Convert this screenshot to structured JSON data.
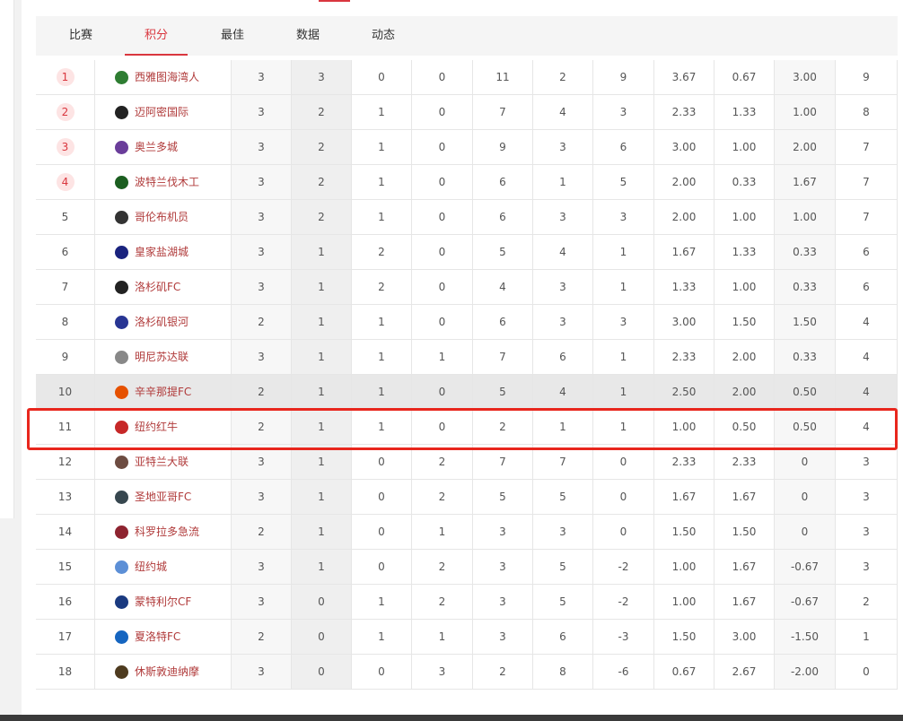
{
  "tabs": [
    "比赛",
    "积分",
    "最佳",
    "数据",
    "动态"
  ],
  "table": {
    "rows": [
      [
        "1",
        "西雅图海湾人",
        "3",
        "3",
        "0",
        "0",
        "11",
        "2",
        "9",
        "3.67",
        "0.67",
        "3.00",
        "9"
      ],
      [
        "2",
        "迈阿密国际",
        "3",
        "2",
        "1",
        "0",
        "7",
        "4",
        "3",
        "2.33",
        "1.33",
        "1.00",
        "8"
      ],
      [
        "3",
        "奥兰多城",
        "3",
        "2",
        "1",
        "0",
        "9",
        "3",
        "6",
        "3.00",
        "1.00",
        "2.00",
        "7"
      ],
      [
        "4",
        "波特兰伐木工",
        "3",
        "2",
        "1",
        "0",
        "6",
        "1",
        "5",
        "2.00",
        "0.33",
        "1.67",
        "7"
      ],
      [
        "5",
        "哥伦布机员",
        "3",
        "2",
        "1",
        "0",
        "6",
        "3",
        "3",
        "2.00",
        "1.00",
        "1.00",
        "7"
      ],
      [
        "6",
        "皇家盐湖城",
        "3",
        "1",
        "2",
        "0",
        "5",
        "4",
        "1",
        "1.67",
        "1.33",
        "0.33",
        "6"
      ],
      [
        "7",
        "洛杉矶FC",
        "3",
        "1",
        "2",
        "0",
        "4",
        "3",
        "1",
        "1.33",
        "1.00",
        "0.33",
        "6"
      ],
      [
        "8",
        "洛杉矶银河",
        "2",
        "1",
        "1",
        "0",
        "6",
        "3",
        "3",
        "3.00",
        "1.50",
        "1.50",
        "4"
      ],
      [
        "9",
        "明尼苏达联",
        "3",
        "1",
        "1",
        "1",
        "7",
        "6",
        "1",
        "2.33",
        "2.00",
        "0.33",
        "4"
      ],
      [
        "10",
        "辛辛那提FC",
        "2",
        "1",
        "1",
        "0",
        "5",
        "4",
        "1",
        "2.50",
        "2.00",
        "0.50",
        "4"
      ],
      [
        "11",
        "纽约红牛",
        "2",
        "1",
        "1",
        "0",
        "2",
        "1",
        "1",
        "1.00",
        "0.50",
        "0.50",
        "4"
      ],
      [
        "12",
        "亚特兰大联",
        "3",
        "1",
        "0",
        "2",
        "7",
        "7",
        "0",
        "2.33",
        "2.33",
        "0",
        "3"
      ],
      [
        "13",
        "圣地亚哥FC",
        "3",
        "1",
        "0",
        "2",
        "5",
        "5",
        "0",
        "1.67",
        "1.67",
        "0",
        "3"
      ],
      [
        "14",
        "科罗拉多急流",
        "2",
        "1",
        "0",
        "1",
        "3",
        "3",
        "0",
        "1.50",
        "1.50",
        "0",
        "3"
      ],
      [
        "15",
        "纽约城",
        "3",
        "1",
        "0",
        "2",
        "3",
        "5",
        "-2",
        "1.00",
        "1.67",
        "-0.67",
        "3"
      ],
      [
        "16",
        "蒙特利尔CF",
        "3",
        "0",
        "1",
        "2",
        "3",
        "5",
        "-2",
        "1.00",
        "1.67",
        "-0.67",
        "2"
      ],
      [
        "17",
        "夏洛特FC",
        "2",
        "0",
        "1",
        "1",
        "3",
        "6",
        "-3",
        "1.50",
        "3.00",
        "-1.50",
        "1"
      ],
      [
        "18",
        "休斯敦迪纳摩",
        "3",
        "0",
        "0",
        "3",
        "2",
        "8",
        "-6",
        "0.67",
        "2.67",
        "-2.00",
        "0"
      ]
    ]
  }
}
